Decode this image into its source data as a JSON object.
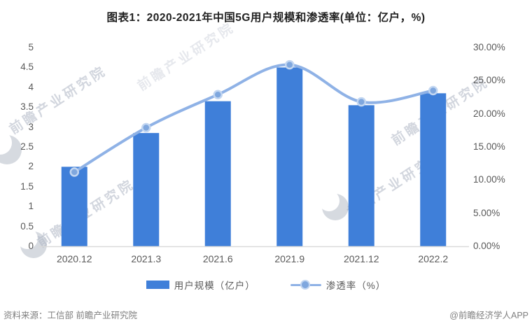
{
  "title": "图表1：2020-2021年中国5G用户规模和渗透率(单位：亿户，%)",
  "chart_data": {
    "type": "combo-bar-line",
    "categories": [
      "2020.12",
      "2021.3",
      "2021.6",
      "2021.9",
      "2021.12",
      "2022.2"
    ],
    "series": [
      {
        "name": "用户规模（亿户）",
        "type": "bar",
        "axis": "left",
        "values": [
          2.0,
          2.85,
          3.65,
          4.5,
          3.55,
          3.85
        ]
      },
      {
        "name": "渗透率（%）",
        "type": "line",
        "axis": "right",
        "values": [
          11.2,
          17.9,
          22.9,
          27.4,
          21.8,
          23.5
        ]
      }
    ],
    "left_axis": {
      "min": 0,
      "max": 5,
      "step": 0.5,
      "tick_labels": [
        "0",
        "0.5",
        "1",
        "1.5",
        "2",
        "2.5",
        "3",
        "3.5",
        "4",
        "4.5",
        "5"
      ]
    },
    "right_axis": {
      "min": 0,
      "max": 30,
      "step": 5,
      "tick_labels": [
        "0.00%",
        "5.00%",
        "10.00%",
        "15.00%",
        "20.00%",
        "25.00%",
        "30.00%"
      ]
    },
    "grid": false,
    "legend_position": "bottom"
  },
  "legend": {
    "bar_label": "用户规模（亿户）",
    "line_label": "渗透率（%）"
  },
  "footer": {
    "source": "资料来源：工信部 前瞻产业研究院",
    "credit": "@前瞻经济学人APP"
  },
  "watermark": {
    "text": "前瞻产业研究院"
  },
  "colors": {
    "bar": "#3F7FD9",
    "line": "#8FB2E6",
    "marker_fill": "#7FA7DE",
    "marker_ring": "#C2D6F1",
    "axis_line": "#D9D9D9",
    "axis_text": "#595959",
    "footer_text": "#7F7F7F"
  }
}
